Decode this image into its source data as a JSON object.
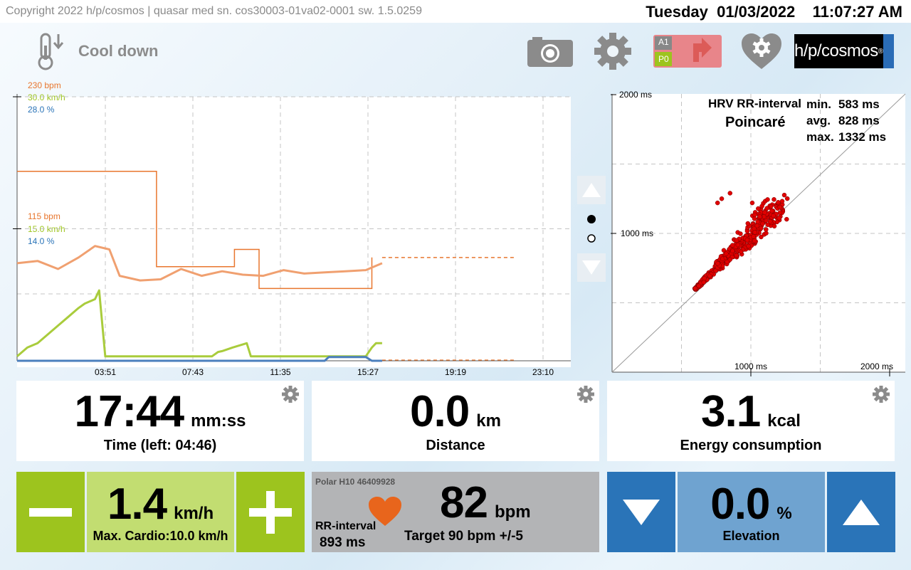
{
  "header": {
    "copyright": "Copyright 2022 h/p/cosmos | quasar  med  sn. cos30003-01va02-0001  sw. 1.5.0259",
    "datetime": "Tuesday  01/03/2022    11:07:27 AM"
  },
  "mode": {
    "label": "Cool down",
    "icon": "thermometer-down-icon"
  },
  "toolbar": {
    "camera_icon": "camera-icon",
    "settings_icon": "gear-icon",
    "profile_icon": "profile-a1-p0-icon",
    "profile_a": "A1",
    "profile_p": "P0",
    "heart_settings_icon": "heart-gear-icon",
    "logo": "h/p/cosmos",
    "logo_mark": "®"
  },
  "chart": {
    "y_top": [
      "230 bpm",
      "30.0 km/h",
      "28.0 %"
    ],
    "y_mid": [
      "115 bpm",
      "15.0 km/h",
      "14.0 %"
    ],
    "x_ticks": [
      "03:51",
      "07:43",
      "11:35",
      "15:27",
      "19:19",
      "23:10"
    ]
  },
  "chart_data": {
    "type": "line",
    "x_unit": "mm:ss",
    "x_ticks": [
      "03:51",
      "07:43",
      "11:35",
      "15:27",
      "19:19",
      "23:10"
    ],
    "ylim_heart_rate": [
      0,
      230
    ],
    "ylim_speed": [
      0,
      30
    ],
    "ylim_elevation": [
      0,
      28
    ],
    "series": [
      {
        "x_min": [
          0,
          6.8,
          6.8,
          10.6,
          10.6,
          11.8,
          11.8,
          17.3,
          17.3,
          24.3
        ],
        "values": [
          165,
          165,
          82,
          82,
          97,
          97,
          63,
          63,
          90,
          90
        ],
        "color": "#e8762e"
      },
      {
        "x_min": [
          0,
          1,
          2,
          3,
          3.8,
          4.5,
          5,
          6,
          7,
          8,
          9,
          10,
          11,
          12,
          13,
          14,
          15,
          16,
          17,
          17.8
        ],
        "values": [
          85,
          87,
          80,
          90,
          100,
          97,
          74,
          70,
          71,
          80,
          74,
          78,
          75,
          74,
          79,
          76,
          77,
          78,
          79,
          85
        ],
        "color": "#f0a070"
      },
      {
        "x_min": [
          0,
          0.5,
          1,
          1.5,
          2,
          2.5,
          3,
          3.3,
          3.8,
          4,
          4.3,
          6,
          9.5,
          9.8,
          10,
          10.5,
          11.2,
          11.4,
          15,
          17,
          17.3,
          17.5,
          17.8
        ],
        "values": [
          0.5,
          1.5,
          2,
          3,
          4,
          5,
          6,
          6.5,
          7,
          8,
          0.5,
          0.5,
          0.5,
          1,
          1.1,
          1.5,
          2,
          0.5,
          0.5,
          0.5,
          1.5,
          2,
          2
        ],
        "color": "#a9cc3c"
      },
      {
        "x_min": [
          0,
          15,
          15.2,
          17,
          17.3,
          17.8
        ],
        "values": [
          0,
          0,
          0.4,
          0.4,
          0,
          0
        ],
        "color": "#4b7fbd"
      }
    ]
  },
  "nav": {
    "up_icon": "triangle-up-icon",
    "down_icon": "triangle-down-icon",
    "page": 1,
    "pages": 2
  },
  "poincare": {
    "title": "HRV RR-interval",
    "subtitle": "Poincaré",
    "min_label": "min.",
    "min_value": "583 ms",
    "avg_label": "avg.",
    "avg_value": "828 ms",
    "max_label": "max.",
    "max_value": "1332 ms",
    "y_ticks": [
      "2000 ms",
      "1000 ms"
    ],
    "x_ticks": [
      "1000 ms",
      "2000 ms"
    ]
  },
  "tiles": [
    {
      "value": "17:44",
      "unit": "mm:ss",
      "caption": "Time (left: 04:46)"
    },
    {
      "value": "0.0",
      "unit": "km",
      "caption": "Distance"
    },
    {
      "value": "3.1",
      "unit": "kcal",
      "caption": "Energy consumption"
    }
  ],
  "speed": {
    "value": "1.4",
    "unit": "km/h",
    "caption": "Max. Cardio:10.0 km/h",
    "color": "#9dc41e"
  },
  "hr": {
    "sensor": "Polar H10 46409928",
    "rr_label": "RR-interval",
    "rr_value": "893  ms",
    "value": "82",
    "unit": "bpm",
    "target": "Target 90 bpm +/-5",
    "heart_color": "#e8651c"
  },
  "elevation": {
    "value": "0.0",
    "unit": "%",
    "caption": "Elevation",
    "color": "#2a74b8"
  }
}
